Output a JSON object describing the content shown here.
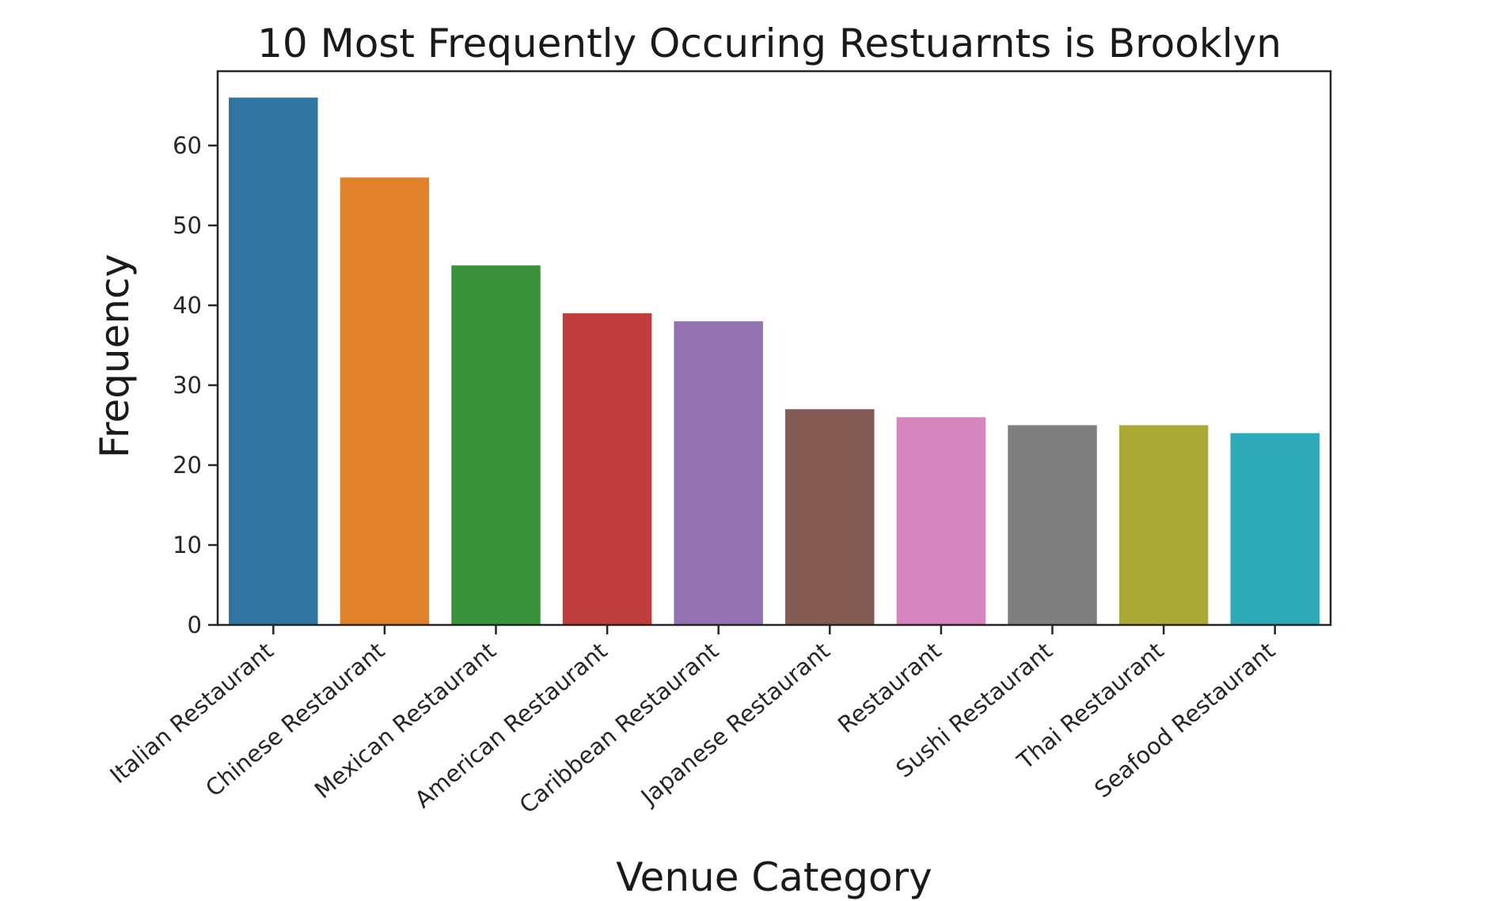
{
  "chart_data": {
    "type": "bar",
    "title": "10 Most Frequently Occuring Restuarnts is Brooklyn",
    "xlabel": "Venue Category",
    "ylabel": "Frequency",
    "categories": [
      "Italian Restaurant",
      "Chinese Restaurant",
      "Mexican Restaurant",
      "American Restaurant",
      "Caribbean Restaurant",
      "Japanese Restaurant",
      "Restaurant",
      "Sushi Restaurant",
      "Thai Restaurant",
      "Seafood Restaurant"
    ],
    "values": [
      66,
      56,
      45,
      39,
      38,
      27,
      26,
      25,
      25,
      24
    ],
    "colors": [
      "#3274a1",
      "#e1812c",
      "#3a923a",
      "#c03d3e",
      "#9372b2",
      "#845b53",
      "#d684bd",
      "#7f7f7f",
      "#a9aa35",
      "#2ea9b8"
    ],
    "yticks": [
      0,
      10,
      20,
      30,
      40,
      50,
      60
    ],
    "ylim": [
      0,
      69.3
    ],
    "grid": false,
    "legend": "none"
  }
}
